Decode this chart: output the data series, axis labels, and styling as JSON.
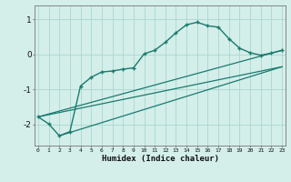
{
  "xlabel": "Humidex (Indice chaleur)",
  "background_color": "#d4eeea",
  "grid_color": "#a8d8d0",
  "line_color": "#1a7a6e",
  "x_ticks": [
    0,
    1,
    2,
    3,
    4,
    5,
    6,
    7,
    8,
    9,
    10,
    11,
    12,
    13,
    14,
    15,
    16,
    17,
    18,
    19,
    20,
    21,
    22,
    23
  ],
  "ylim": [
    -2.6,
    1.4
  ],
  "xlim": [
    -0.3,
    23.3
  ],
  "curve1_x": [
    0,
    1,
    2,
    3,
    4,
    5,
    6,
    7,
    8,
    9,
    10,
    11,
    12,
    13,
    14,
    15,
    16,
    17,
    18,
    19,
    20,
    21,
    22,
    23
  ],
  "curve1_y": [
    -1.78,
    -1.98,
    -2.32,
    -2.2,
    -0.9,
    -0.65,
    -0.5,
    -0.47,
    -0.42,
    -0.38,
    0.02,
    0.12,
    0.35,
    0.62,
    0.85,
    0.92,
    0.82,
    0.78,
    0.45,
    0.18,
    0.05,
    -0.02,
    0.04,
    0.12
  ],
  "curve2_x": [
    0,
    23
  ],
  "curve2_y": [
    -1.78,
    0.12
  ],
  "curve3_x": [
    0,
    23
  ],
  "curve3_y": [
    -1.78,
    -0.35
  ],
  "curve4_x": [
    2,
    23
  ],
  "curve4_y": [
    -2.32,
    -0.35
  ],
  "yticks": [
    -2,
    -1,
    0,
    1
  ]
}
